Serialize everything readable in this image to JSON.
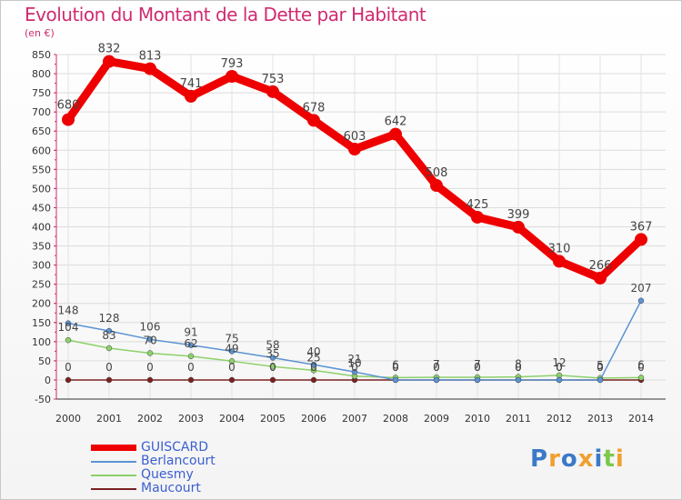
{
  "header": {
    "title": "Evolution du Montant de la Dette par Habitant",
    "subtitle": "(en €)"
  },
  "logo": {
    "text": "Proxiti",
    "colors": [
      "#3b79c8",
      "#f0a030",
      "#3b79c8",
      "#f0a030",
      "#3b79c8",
      "#7cc84a",
      "#f0a030"
    ]
  },
  "chart_data": {
    "type": "line",
    "categories": [
      "2000",
      "2001",
      "2002",
      "2003",
      "2004",
      "2005",
      "2006",
      "2007",
      "2008",
      "2009",
      "2010",
      "2011",
      "2012",
      "2013",
      "2014"
    ],
    "ylim": [
      -50,
      850
    ],
    "yticks": [
      -50,
      0,
      50,
      100,
      150,
      200,
      250,
      300,
      350,
      400,
      450,
      500,
      550,
      600,
      650,
      700,
      750,
      800,
      850
    ],
    "grid": true,
    "legend_placement": "bottom-left",
    "series": [
      {
        "name": "GUISCARD",
        "color": "#ee0000",
        "values": [
          680,
          832,
          813,
          741,
          793,
          753,
          678,
          603,
          642,
          508,
          425,
          399,
          310,
          266,
          367
        ],
        "labels": [
          "680",
          "832",
          "813",
          "741",
          "793",
          "753",
          "678",
          "603",
          "642",
          "508",
          "425",
          "399",
          "310",
          "266",
          "367"
        ]
      },
      {
        "name": "Berlancourt",
        "color": "#5b93d3",
        "values": [
          148,
          128,
          106,
          91,
          75,
          58,
          40,
          21,
          0,
          0,
          0,
          0,
          0,
          0,
          207
        ],
        "labels": [
          "148",
          "128",
          "106",
          "91",
          "75",
          "58",
          "40",
          "21",
          "0",
          "0",
          "0",
          "0",
          "0",
          "0",
          "207"
        ]
      },
      {
        "name": "Quesmy",
        "color": "#8cd16a",
        "values": [
          104,
          83,
          70,
          62,
          49,
          35,
          25,
          10,
          6,
          7,
          7,
          8,
          12,
          5,
          6
        ],
        "labels": [
          "104",
          "83",
          "70",
          "62",
          "49",
          "35",
          "25",
          "10",
          "6",
          "7",
          "7",
          "8",
          "12",
          "5",
          "6"
        ]
      },
      {
        "name": "Maucourt",
        "color": "#7a2020",
        "values": [
          0,
          0,
          0,
          0,
          0,
          0,
          0,
          0,
          0,
          0,
          0,
          0,
          0,
          0,
          0
        ],
        "labels": [
          "0",
          "0",
          "0",
          "0",
          "0",
          "0",
          "0",
          "0",
          "0",
          "0",
          "0",
          "0",
          "0",
          "0",
          "0"
        ]
      }
    ]
  }
}
